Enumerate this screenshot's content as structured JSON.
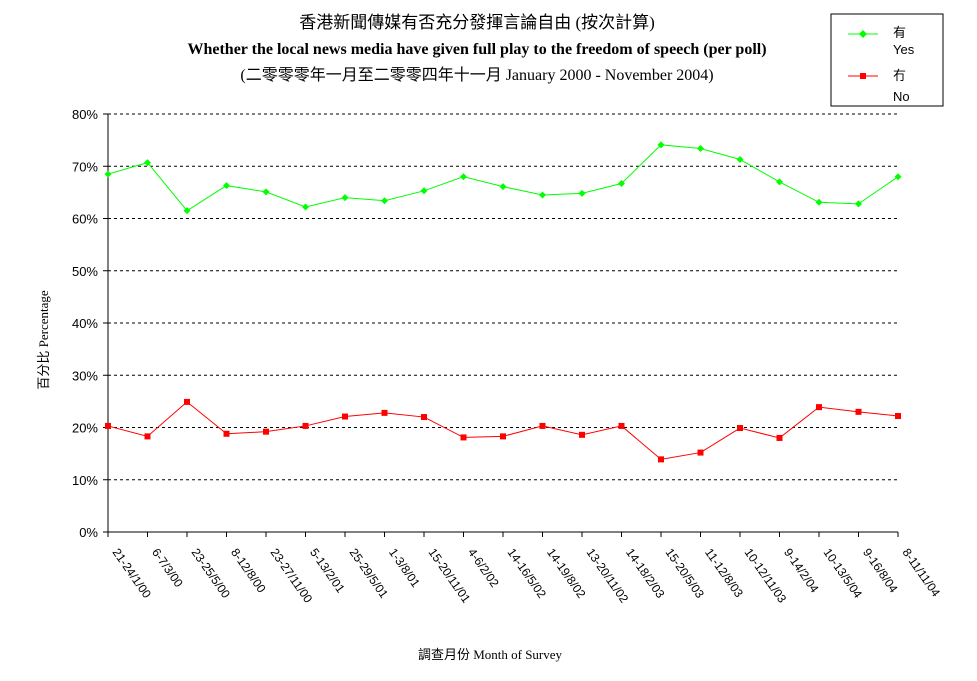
{
  "chart_data": {
    "type": "line",
    "title": "香港新聞傳媒有否充分發揮言論自由 (按次計算)",
    "subtitle": "Whether the local news media have given full play to the freedom of speech (per poll)",
    "subtitle2": "(二零零零年一月至二零零四年十一月 January 2000 - November 2004)",
    "xlabel": "調查月份 Month of Survey",
    "ylabel": "百分比 Percentage",
    "ylim": [
      0,
      80
    ],
    "yticks": [
      "0%",
      "10%",
      "20%",
      "30%",
      "40%",
      "50%",
      "60%",
      "70%",
      "80%"
    ],
    "grid": true,
    "legend_position": "top-right",
    "categories": [
      "21-24/1/00",
      "6-7/3/00",
      "23-25/5/00",
      "8-12/8/00",
      "23-27/11/00",
      "5-13/2/01",
      "25-29/5/01",
      "1-3/8/01",
      "15-20/11/01",
      "4-6/2/02",
      "14-16/5/02",
      "14-19/8/02",
      "13-20/11/02",
      "14-18/2/03",
      "15-20/5/03",
      "11-12/8/03",
      "10-12/11/03",
      "9-14/2/04",
      "10-13/5/04",
      "9-16/8/04",
      "8-11/11/04"
    ],
    "series": [
      {
        "name_zh": "有",
        "name_en": "Yes",
        "color": "#00ff00",
        "marker": "diamond",
        "values": [
          68.5,
          70.7,
          61.5,
          66.3,
          65.1,
          62.2,
          64.0,
          63.4,
          65.3,
          68.0,
          66.1,
          64.5,
          64.8,
          66.7,
          74.1,
          73.4,
          71.3,
          67.0,
          63.1,
          62.8,
          68.0
        ]
      },
      {
        "name_zh": "冇",
        "name_en": "No",
        "color": "#ff0000",
        "marker": "square",
        "values": [
          20.3,
          18.3,
          24.9,
          18.8,
          19.2,
          20.3,
          22.1,
          22.8,
          22.0,
          18.1,
          18.3,
          20.3,
          18.6,
          20.3,
          13.9,
          15.2,
          19.9,
          18.0,
          23.9,
          23.0,
          22.2
        ]
      }
    ]
  }
}
